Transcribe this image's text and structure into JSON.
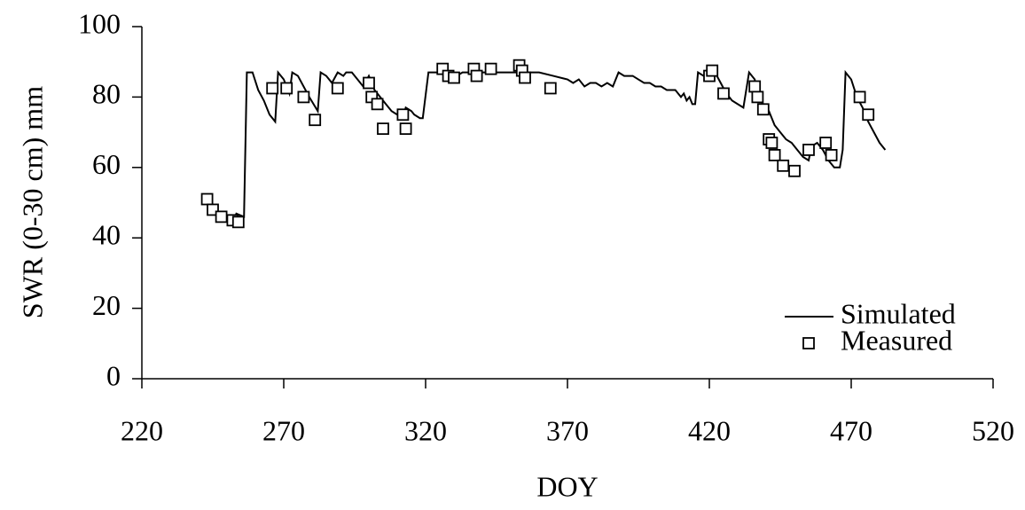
{
  "chart_data": {
    "type": "line",
    "xlabel": "DOY",
    "ylabel": "SWR (0-30 cm) mm",
    "xlim": [
      220,
      520
    ],
    "xticks": [
      220,
      270,
      320,
      370,
      420,
      470,
      520
    ],
    "ylim": [
      0,
      100
    ],
    "yticks": [
      0,
      20,
      40,
      60,
      80,
      100
    ],
    "legend": "lower right",
    "series": [
      {
        "name": "Simulated",
        "type": "line",
        "color": "#000000",
        "x": [
          253,
          256,
          257,
          259,
          261,
          263,
          265,
          267,
          268,
          270,
          272,
          273,
          275,
          277,
          279,
          282,
          283,
          285,
          287,
          289,
          291,
          292,
          294,
          296,
          298,
          300,
          302,
          304,
          306,
          308,
          310,
          312,
          313,
          315,
          316,
          318,
          319,
          321,
          325,
          327,
          329,
          331,
          333,
          337,
          340,
          345,
          350,
          360,
          365,
          370,
          372,
          374,
          376,
          378,
          380,
          382,
          384,
          386,
          388,
          390,
          393,
          395,
          397,
          399,
          401,
          403,
          405,
          408,
          410,
          411,
          412,
          413,
          414,
          415,
          416,
          418,
          420,
          422,
          424,
          426,
          428,
          430,
          432,
          434,
          436,
          437,
          439,
          441,
          443,
          445,
          447,
          449,
          451,
          453,
          455,
          456,
          458,
          460,
          462,
          464,
          466,
          467,
          468,
          470,
          472,
          474,
          476,
          478,
          480,
          482
        ],
        "values": [
          47,
          46,
          87,
          87,
          82,
          79,
          75,
          73,
          87,
          85,
          81,
          87,
          86,
          83,
          80,
          76,
          87,
          86,
          84,
          87,
          86,
          87,
          87,
          85,
          83,
          86,
          82,
          80,
          78,
          76,
          75,
          74,
          77,
          76,
          75,
          74,
          74,
          87,
          87,
          86,
          87,
          86,
          87,
          87,
          87,
          87,
          87,
          87,
          86,
          85,
          84,
          85,
          83,
          84,
          84,
          83,
          84,
          83,
          87,
          86,
          86,
          85,
          84,
          84,
          83,
          83,
          82,
          82,
          80,
          81,
          79,
          80,
          78,
          78,
          87,
          86,
          87,
          87,
          84,
          81,
          79,
          78,
          77,
          87,
          85,
          80,
          78,
          76,
          72,
          70,
          68,
          67,
          65,
          63,
          62,
          66,
          67,
          65,
          62,
          60,
          60,
          65,
          87,
          85,
          80,
          77,
          73,
          70,
          67,
          65
        ]
      },
      {
        "name": "Measured",
        "type": "scatter",
        "color": "#000000",
        "x": [
          243,
          245,
          248,
          252,
          254,
          266,
          271,
          277,
          281,
          289,
          300,
          301,
          303,
          305,
          312,
          313,
          326,
          328,
          330,
          337,
          338,
          343,
          353,
          354,
          355,
          364,
          420,
          421,
          425,
          436,
          437,
          439,
          441,
          442,
          443,
          446,
          450,
          455,
          461,
          463,
          473,
          476
        ],
        "values": [
          51,
          48,
          46,
          45,
          44.5,
          82.5,
          82.5,
          80,
          73.5,
          82.5,
          84,
          80,
          78,
          71,
          75,
          71,
          88,
          86,
          85.5,
          88,
          86,
          88,
          89,
          87.5,
          85.5,
          82.5,
          86,
          87.5,
          81,
          83,
          80,
          76.5,
          68,
          67,
          63.5,
          60.5,
          59,
          65,
          67,
          63.5,
          80,
          75
        ]
      }
    ]
  }
}
